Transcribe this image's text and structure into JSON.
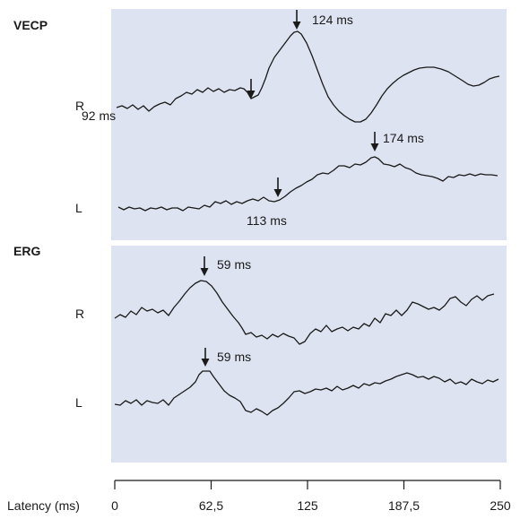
{
  "sections": [
    {
      "label": "VECP",
      "traces": [
        {
          "eye": "R",
          "markers": [
            {
              "latency_ms": 92,
              "label": "92 ms",
              "side": "below"
            },
            {
              "latency_ms": 124,
              "label": "124 ms",
              "side": "above"
            }
          ]
        },
        {
          "eye": "L",
          "markers": [
            {
              "latency_ms": 113,
              "label": "113 ms",
              "side": "below"
            },
            {
              "latency_ms": 174,
              "label": "174 ms",
              "side": "above"
            }
          ]
        }
      ]
    },
    {
      "label": "ERG",
      "traces": [
        {
          "eye": "R",
          "markers": [
            {
              "latency_ms": 59,
              "label": "59 ms",
              "side": "above"
            }
          ]
        },
        {
          "eye": "L",
          "markers": [
            {
              "latency_ms": 59,
              "label": "59 ms",
              "side": "above"
            }
          ]
        }
      ]
    }
  ],
  "axis": {
    "label": "Latency (ms)",
    "range": [
      0,
      250
    ],
    "ticks": [
      {
        "value": 0,
        "label": "0"
      },
      {
        "value": 62.5,
        "label": "62,5"
      },
      {
        "value": 125,
        "label": "125"
      },
      {
        "value": 187.5,
        "label": "187,5"
      },
      {
        "value": 250,
        "label": "250"
      }
    ]
  }
}
